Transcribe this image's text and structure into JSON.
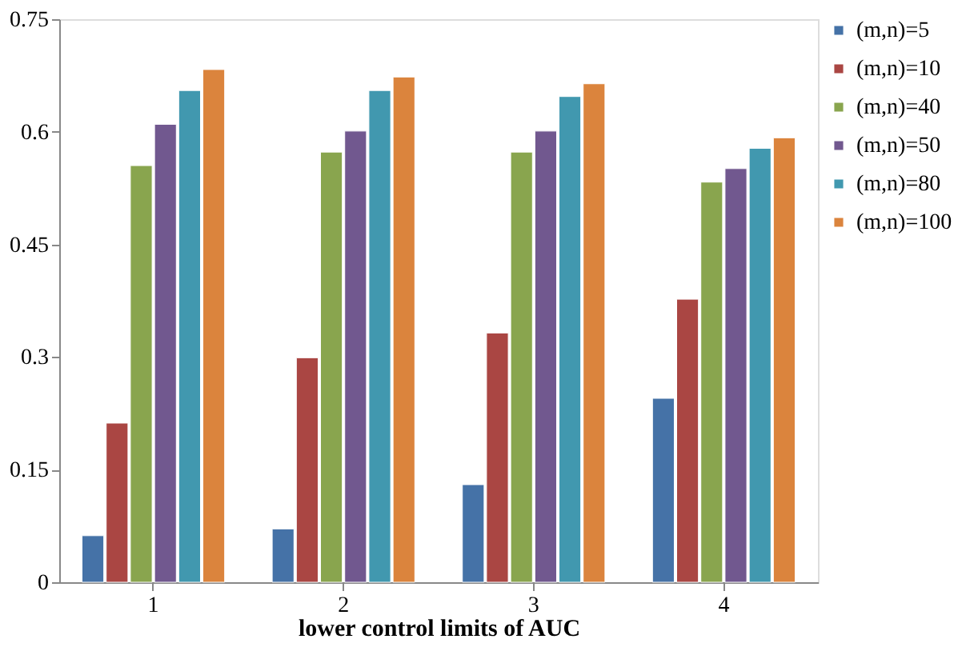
{
  "chart_data": {
    "type": "bar",
    "xlabel": "lower control limits of AUC",
    "categories": [
      "1",
      "2",
      "3",
      "4"
    ],
    "series": [
      {
        "name": "(m,n)=5",
        "color": "#4572a7",
        "values": [
          0.062,
          0.071,
          0.13,
          0.245
        ]
      },
      {
        "name": "(m,n)=10",
        "color": "#aa4643",
        "values": [
          0.212,
          0.299,
          0.332,
          0.377
        ]
      },
      {
        "name": "(m,n)=40",
        "color": "#89a54e",
        "values": [
          0.555,
          0.573,
          0.573,
          0.533
        ]
      },
      {
        "name": "(m,n)=50",
        "color": "#71588f",
        "values": [
          0.61,
          0.601,
          0.601,
          0.551
        ]
      },
      {
        "name": "(m,n)=80",
        "color": "#4198af",
        "values": [
          0.655,
          0.655,
          0.647,
          0.578
        ]
      },
      {
        "name": "(m,n)=100",
        "color": "#db843d",
        "values": [
          0.683,
          0.673,
          0.664,
          0.592
        ]
      }
    ],
    "ylim": [
      0,
      0.75
    ],
    "yticks": [
      0,
      0.15,
      0.3,
      0.45,
      0.6,
      0.75
    ],
    "grid": false,
    "legend": "right"
  }
}
